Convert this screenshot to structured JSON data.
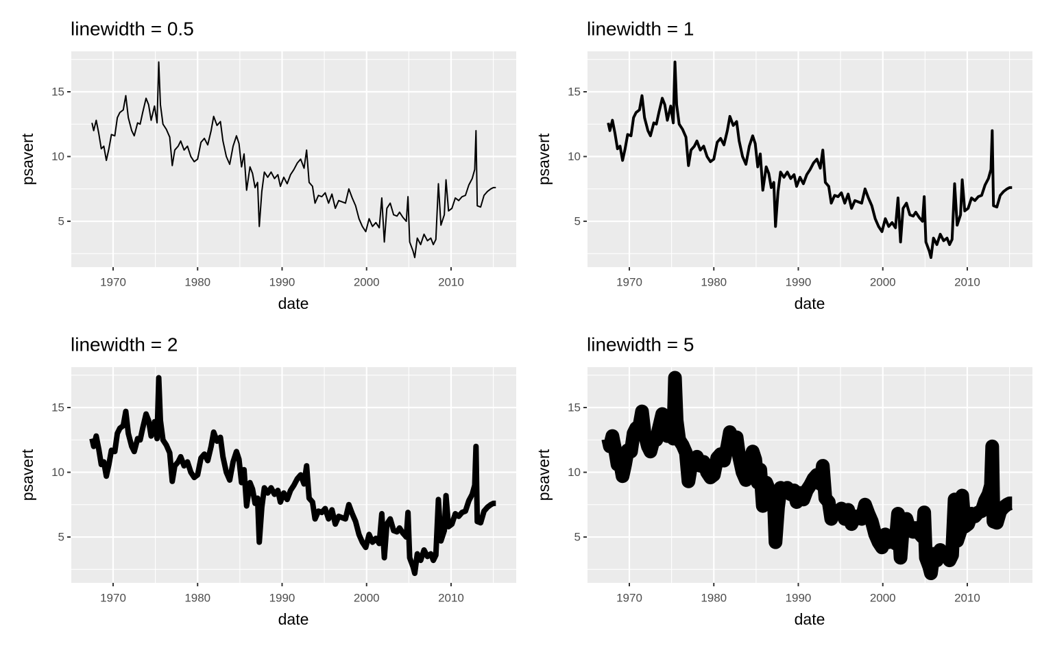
{
  "chart_data": [
    {
      "type": "line",
      "title": "linewidth = 0.5",
      "linewidth": 0.5,
      "color": "#000000",
      "x_label": "date",
      "y_label": "psavert",
      "xlim": [
        1964.97,
        2017.71
      ],
      "ylim": [
        1.46,
        18.12
      ],
      "xticks": [
        1970,
        1980,
        1990,
        2000,
        2010
      ],
      "yticks": [
        5,
        10,
        15
      ],
      "xminor": [
        1965,
        1975,
        1985,
        1995,
        2005,
        2015
      ],
      "yminor": [
        2.5,
        7.5,
        12.5,
        17.5
      ],
      "grid": true,
      "x": [
        1967.5,
        1967.7,
        1968.0,
        1968.3,
        1968.6,
        1968.9,
        1969.2,
        1969.5,
        1969.8,
        1970.2,
        1970.5,
        1970.8,
        1971.2,
        1971.5,
        1971.8,
        1972.2,
        1972.5,
        1972.9,
        1973.2,
        1973.5,
        1973.9,
        1974.2,
        1974.5,
        1974.9,
        1975.2,
        1975.4,
        1975.6,
        1975.9,
        1976.3,
        1976.7,
        1977.0,
        1977.3,
        1977.7,
        1978.0,
        1978.4,
        1978.8,
        1979.2,
        1979.6,
        1980.0,
        1980.4,
        1980.8,
        1981.2,
        1981.6,
        1981.9,
        1982.3,
        1982.7,
        1983.0,
        1983.4,
        1983.8,
        1984.2,
        1984.6,
        1984.9,
        1985.2,
        1985.5,
        1985.8,
        1986.2,
        1986.5,
        1986.8,
        1987.1,
        1987.3,
        1987.6,
        1987.9,
        1988.3,
        1988.7,
        1989.1,
        1989.5,
        1989.8,
        1990.2,
        1990.6,
        1991.0,
        1991.4,
        1991.8,
        1992.2,
        1992.6,
        1992.9,
        1993.2,
        1993.6,
        1993.9,
        1994.3,
        1994.7,
        1995.1,
        1995.5,
        1995.9,
        1996.3,
        1996.7,
        1997.1,
        1997.5,
        1997.9,
        1998.3,
        1998.7,
        1999.1,
        1999.5,
        1999.9,
        2000.3,
        2000.7,
        2001.1,
        2001.5,
        2001.8,
        2002.1,
        2002.4,
        2002.8,
        2003.2,
        2003.6,
        2003.9,
        2004.3,
        2004.7,
        2004.9,
        2005.1,
        2005.5,
        2005.7,
        2006.0,
        2006.4,
        2006.8,
        2007.2,
        2007.6,
        2007.9,
        2008.2,
        2008.5,
        2008.8,
        2009.2,
        2009.4,
        2009.7,
        2010.1,
        2010.5,
        2010.9,
        2011.3,
        2011.7,
        2012.1,
        2012.5,
        2012.8,
        2012.95,
        2013.1,
        2013.5,
        2013.9,
        2014.3,
        2014.7,
        2015.0,
        2015.3
      ],
      "values": [
        12.6,
        12.0,
        12.8,
        11.8,
        10.6,
        10.8,
        9.7,
        10.6,
        11.7,
        11.6,
        13.0,
        13.4,
        13.6,
        14.7,
        13.0,
        12.0,
        11.6,
        12.6,
        12.5,
        13.4,
        14.5,
        14.0,
        12.8,
        13.9,
        12.6,
        17.3,
        14.0,
        12.5,
        12.1,
        11.5,
        9.3,
        10.5,
        10.8,
        11.2,
        10.5,
        10.8,
        10.0,
        9.6,
        9.8,
        11.1,
        11.4,
        10.9,
        12.0,
        13.1,
        12.4,
        12.7,
        11.2,
        10.0,
        9.4,
        10.8,
        11.6,
        11.0,
        9.2,
        10.2,
        7.4,
        9.2,
        8.7,
        7.6,
        8.0,
        4.6,
        7.3,
        8.8,
        8.4,
        8.8,
        8.3,
        8.6,
        7.7,
        8.4,
        7.9,
        8.6,
        9.0,
        9.5,
        9.8,
        9.1,
        10.5,
        8.0,
        7.7,
        6.4,
        7.0,
        6.9,
        7.2,
        6.4,
        7.1,
        6.0,
        6.6,
        6.5,
        6.4,
        7.5,
        6.8,
        6.2,
        5.2,
        4.6,
        4.2,
        5.2,
        4.6,
        4.9,
        4.5,
        6.8,
        3.4,
        6.0,
        6.4,
        5.5,
        5.4,
        5.7,
        5.3,
        5.0,
        6.9,
        3.4,
        2.7,
        2.2,
        3.7,
        3.2,
        4.0,
        3.5,
        3.7,
        3.2,
        3.6,
        7.9,
        4.7,
        5.5,
        8.2,
        5.8,
        6.0,
        6.8,
        6.6,
        6.9,
        7.0,
        7.8,
        8.3,
        9.0,
        12.0,
        6.2,
        6.1,
        7.0,
        7.3,
        7.5,
        7.6,
        7.6
      ]
    },
    {
      "type": "line",
      "title": "linewidth = 1",
      "linewidth": 1,
      "color": "#000000",
      "x_label": "date",
      "y_label": "psavert",
      "xlim": [
        1964.97,
        2017.71
      ],
      "ylim": [
        1.46,
        18.12
      ],
      "xticks": [
        1970,
        1980,
        1990,
        2000,
        2010
      ],
      "yticks": [
        5,
        10,
        15
      ],
      "xminor": [
        1965,
        1975,
        1985,
        1995,
        2005,
        2015
      ],
      "yminor": [
        2.5,
        7.5,
        12.5,
        17.5
      ],
      "grid": true,
      "x": [
        1967.5,
        1967.7,
        1968.0,
        1968.3,
        1968.6,
        1968.9,
        1969.2,
        1969.5,
        1969.8,
        1970.2,
        1970.5,
        1970.8,
        1971.2,
        1971.5,
        1971.8,
        1972.2,
        1972.5,
        1972.9,
        1973.2,
        1973.5,
        1973.9,
        1974.2,
        1974.5,
        1974.9,
        1975.2,
        1975.4,
        1975.6,
        1975.9,
        1976.3,
        1976.7,
        1977.0,
        1977.3,
        1977.7,
        1978.0,
        1978.4,
        1978.8,
        1979.2,
        1979.6,
        1980.0,
        1980.4,
        1980.8,
        1981.2,
        1981.6,
        1981.9,
        1982.3,
        1982.7,
        1983.0,
        1983.4,
        1983.8,
        1984.2,
        1984.6,
        1984.9,
        1985.2,
        1985.5,
        1985.8,
        1986.2,
        1986.5,
        1986.8,
        1987.1,
        1987.3,
        1987.6,
        1987.9,
        1988.3,
        1988.7,
        1989.1,
        1989.5,
        1989.8,
        1990.2,
        1990.6,
        1991.0,
        1991.4,
        1991.8,
        1992.2,
        1992.6,
        1992.9,
        1993.2,
        1993.6,
        1993.9,
        1994.3,
        1994.7,
        1995.1,
        1995.5,
        1995.9,
        1996.3,
        1996.7,
        1997.1,
        1997.5,
        1997.9,
        1998.3,
        1998.7,
        1999.1,
        1999.5,
        1999.9,
        2000.3,
        2000.7,
        2001.1,
        2001.5,
        2001.8,
        2002.1,
        2002.4,
        2002.8,
        2003.2,
        2003.6,
        2003.9,
        2004.3,
        2004.7,
        2004.9,
        2005.1,
        2005.5,
        2005.7,
        2006.0,
        2006.4,
        2006.8,
        2007.2,
        2007.6,
        2007.9,
        2008.2,
        2008.5,
        2008.8,
        2009.2,
        2009.4,
        2009.7,
        2010.1,
        2010.5,
        2010.9,
        2011.3,
        2011.7,
        2012.1,
        2012.5,
        2012.8,
        2012.95,
        2013.1,
        2013.5,
        2013.9,
        2014.3,
        2014.7,
        2015.0,
        2015.3
      ],
      "values": [
        12.6,
        12.0,
        12.8,
        11.8,
        10.6,
        10.8,
        9.7,
        10.6,
        11.7,
        11.6,
        13.0,
        13.4,
        13.6,
        14.7,
        13.0,
        12.0,
        11.6,
        12.6,
        12.5,
        13.4,
        14.5,
        14.0,
        12.8,
        13.9,
        12.6,
        17.3,
        14.0,
        12.5,
        12.1,
        11.5,
        9.3,
        10.5,
        10.8,
        11.2,
        10.5,
        10.8,
        10.0,
        9.6,
        9.8,
        11.1,
        11.4,
        10.9,
        12.0,
        13.1,
        12.4,
        12.7,
        11.2,
        10.0,
        9.4,
        10.8,
        11.6,
        11.0,
        9.2,
        10.2,
        7.4,
        9.2,
        8.7,
        7.6,
        8.0,
        4.6,
        7.3,
        8.8,
        8.4,
        8.8,
        8.3,
        8.6,
        7.7,
        8.4,
        7.9,
        8.6,
        9.0,
        9.5,
        9.8,
        9.1,
        10.5,
        8.0,
        7.7,
        6.4,
        7.0,
        6.9,
        7.2,
        6.4,
        7.1,
        6.0,
        6.6,
        6.5,
        6.4,
        7.5,
        6.8,
        6.2,
        5.2,
        4.6,
        4.2,
        5.2,
        4.6,
        4.9,
        4.5,
        6.8,
        3.4,
        6.0,
        6.4,
        5.5,
        5.4,
        5.7,
        5.3,
        5.0,
        6.9,
        3.4,
        2.7,
        2.2,
        3.7,
        3.2,
        4.0,
        3.5,
        3.7,
        3.2,
        3.6,
        7.9,
        4.7,
        5.5,
        8.2,
        5.8,
        6.0,
        6.8,
        6.6,
        6.9,
        7.0,
        7.8,
        8.3,
        9.0,
        12.0,
        6.2,
        6.1,
        7.0,
        7.3,
        7.5,
        7.6,
        7.6
      ]
    },
    {
      "type": "line",
      "title": "linewidth = 2",
      "linewidth": 2,
      "color": "#000000",
      "x_label": "date",
      "y_label": "psavert",
      "xlim": [
        1964.97,
        2017.71
      ],
      "ylim": [
        1.46,
        18.12
      ],
      "xticks": [
        1970,
        1980,
        1990,
        2000,
        2010
      ],
      "yticks": [
        5,
        10,
        15
      ],
      "xminor": [
        1965,
        1975,
        1985,
        1995,
        2005,
        2015
      ],
      "yminor": [
        2.5,
        7.5,
        12.5,
        17.5
      ],
      "grid": true,
      "x": [
        1967.5,
        1967.7,
        1968.0,
        1968.3,
        1968.6,
        1968.9,
        1969.2,
        1969.5,
        1969.8,
        1970.2,
        1970.5,
        1970.8,
        1971.2,
        1971.5,
        1971.8,
        1972.2,
        1972.5,
        1972.9,
        1973.2,
        1973.5,
        1973.9,
        1974.2,
        1974.5,
        1974.9,
        1975.2,
        1975.4,
        1975.6,
        1975.9,
        1976.3,
        1976.7,
        1977.0,
        1977.3,
        1977.7,
        1978.0,
        1978.4,
        1978.8,
        1979.2,
        1979.6,
        1980.0,
        1980.4,
        1980.8,
        1981.2,
        1981.6,
        1981.9,
        1982.3,
        1982.7,
        1983.0,
        1983.4,
        1983.8,
        1984.2,
        1984.6,
        1984.9,
        1985.2,
        1985.5,
        1985.8,
        1986.2,
        1986.5,
        1986.8,
        1987.1,
        1987.3,
        1987.6,
        1987.9,
        1988.3,
        1988.7,
        1989.1,
        1989.5,
        1989.8,
        1990.2,
        1990.6,
        1991.0,
        1991.4,
        1991.8,
        1992.2,
        1992.6,
        1992.9,
        1993.2,
        1993.6,
        1993.9,
        1994.3,
        1994.7,
        1995.1,
        1995.5,
        1995.9,
        1996.3,
        1996.7,
        1997.1,
        1997.5,
        1997.9,
        1998.3,
        1998.7,
        1999.1,
        1999.5,
        1999.9,
        2000.3,
        2000.7,
        2001.1,
        2001.5,
        2001.8,
        2002.1,
        2002.4,
        2002.8,
        2003.2,
        2003.6,
        2003.9,
        2004.3,
        2004.7,
        2004.9,
        2005.1,
        2005.5,
        2005.7,
        2006.0,
        2006.4,
        2006.8,
        2007.2,
        2007.6,
        2007.9,
        2008.2,
        2008.5,
        2008.8,
        2009.2,
        2009.4,
        2009.7,
        2010.1,
        2010.5,
        2010.9,
        2011.3,
        2011.7,
        2012.1,
        2012.5,
        2012.8,
        2012.95,
        2013.1,
        2013.5,
        2013.9,
        2014.3,
        2014.7,
        2015.0,
        2015.3
      ],
      "values": [
        12.6,
        12.0,
        12.8,
        11.8,
        10.6,
        10.8,
        9.7,
        10.6,
        11.7,
        11.6,
        13.0,
        13.4,
        13.6,
        14.7,
        13.0,
        12.0,
        11.6,
        12.6,
        12.5,
        13.4,
        14.5,
        14.0,
        12.8,
        13.9,
        12.6,
        17.3,
        14.0,
        12.5,
        12.1,
        11.5,
        9.3,
        10.5,
        10.8,
        11.2,
        10.5,
        10.8,
        10.0,
        9.6,
        9.8,
        11.1,
        11.4,
        10.9,
        12.0,
        13.1,
        12.4,
        12.7,
        11.2,
        10.0,
        9.4,
        10.8,
        11.6,
        11.0,
        9.2,
        10.2,
        7.4,
        9.2,
        8.7,
        7.6,
        8.0,
        4.6,
        7.3,
        8.8,
        8.4,
        8.8,
        8.3,
        8.6,
        7.7,
        8.4,
        7.9,
        8.6,
        9.0,
        9.5,
        9.8,
        9.1,
        10.5,
        8.0,
        7.7,
        6.4,
        7.0,
        6.9,
        7.2,
        6.4,
        7.1,
        6.0,
        6.6,
        6.5,
        6.4,
        7.5,
        6.8,
        6.2,
        5.2,
        4.6,
        4.2,
        5.2,
        4.6,
        4.9,
        4.5,
        6.8,
        3.4,
        6.0,
        6.4,
        5.5,
        5.4,
        5.7,
        5.3,
        5.0,
        6.9,
        3.4,
        2.7,
        2.2,
        3.7,
        3.2,
        4.0,
        3.5,
        3.7,
        3.2,
        3.6,
        7.9,
        4.7,
        5.5,
        8.2,
        5.8,
        6.0,
        6.8,
        6.6,
        6.9,
        7.0,
        7.8,
        8.3,
        9.0,
        12.0,
        6.2,
        6.1,
        7.0,
        7.3,
        7.5,
        7.6,
        7.6
      ]
    },
    {
      "type": "line",
      "title": "linewidth = 5",
      "linewidth": 5,
      "color": "#000000",
      "x_label": "date",
      "y_label": "psavert",
      "xlim": [
        1964.97,
        2017.71
      ],
      "ylim": [
        1.46,
        18.12
      ],
      "xticks": [
        1970,
        1980,
        1990,
        2000,
        2010
      ],
      "yticks": [
        5,
        10,
        15
      ],
      "xminor": [
        1965,
        1975,
        1985,
        1995,
        2005,
        2015
      ],
      "yminor": [
        2.5,
        7.5,
        12.5,
        17.5
      ],
      "grid": true,
      "x": [
        1967.5,
        1967.7,
        1968.0,
        1968.3,
        1968.6,
        1968.9,
        1969.2,
        1969.5,
        1969.8,
        1970.2,
        1970.5,
        1970.8,
        1971.2,
        1971.5,
        1971.8,
        1972.2,
        1972.5,
        1972.9,
        1973.2,
        1973.5,
        1973.9,
        1974.2,
        1974.5,
        1974.9,
        1975.2,
        1975.4,
        1975.6,
        1975.9,
        1976.3,
        1976.7,
        1977.0,
        1977.3,
        1977.7,
        1978.0,
        1978.4,
        1978.8,
        1979.2,
        1979.6,
        1980.0,
        1980.4,
        1980.8,
        1981.2,
        1981.6,
        1981.9,
        1982.3,
        1982.7,
        1983.0,
        1983.4,
        1983.8,
        1984.2,
        1984.6,
        1984.9,
        1985.2,
        1985.5,
        1985.8,
        1986.2,
        1986.5,
        1986.8,
        1987.1,
        1987.3,
        1987.6,
        1987.9,
        1988.3,
        1988.7,
        1989.1,
        1989.5,
        1989.8,
        1990.2,
        1990.6,
        1991.0,
        1991.4,
        1991.8,
        1992.2,
        1992.6,
        1992.9,
        1993.2,
        1993.6,
        1993.9,
        1994.3,
        1994.7,
        1995.1,
        1995.5,
        1995.9,
        1996.3,
        1996.7,
        1997.1,
        1997.5,
        1997.9,
        1998.3,
        1998.7,
        1999.1,
        1999.5,
        1999.9,
        2000.3,
        2000.7,
        2001.1,
        2001.5,
        2001.8,
        2002.1,
        2002.4,
        2002.8,
        2003.2,
        2003.6,
        2003.9,
        2004.3,
        2004.7,
        2004.9,
        2005.1,
        2005.5,
        2005.7,
        2006.0,
        2006.4,
        2006.8,
        2007.2,
        2007.6,
        2007.9,
        2008.2,
        2008.5,
        2008.8,
        2009.2,
        2009.4,
        2009.7,
        2010.1,
        2010.5,
        2010.9,
        2011.3,
        2011.7,
        2012.1,
        2012.5,
        2012.8,
        2012.95,
        2013.1,
        2013.5,
        2013.9,
        2014.3,
        2014.7,
        2015.0,
        2015.3
      ],
      "values": [
        12.6,
        12.0,
        12.8,
        11.8,
        10.6,
        10.8,
        9.7,
        10.6,
        11.7,
        11.6,
        13.0,
        13.4,
        13.6,
        14.7,
        13.0,
        12.0,
        11.6,
        12.6,
        12.5,
        13.4,
        14.5,
        14.0,
        12.8,
        13.9,
        12.6,
        17.3,
        14.0,
        12.5,
        12.1,
        11.5,
        9.3,
        10.5,
        10.8,
        11.2,
        10.5,
        10.8,
        10.0,
        9.6,
        9.8,
        11.1,
        11.4,
        10.9,
        12.0,
        13.1,
        12.4,
        12.7,
        11.2,
        10.0,
        9.4,
        10.8,
        11.6,
        11.0,
        9.2,
        10.2,
        7.4,
        9.2,
        8.7,
        7.6,
        8.0,
        4.6,
        7.3,
        8.8,
        8.4,
        8.8,
        8.3,
        8.6,
        7.7,
        8.4,
        7.9,
        8.6,
        9.0,
        9.5,
        9.8,
        9.1,
        10.5,
        8.0,
        7.7,
        6.4,
        7.0,
        6.9,
        7.2,
        6.4,
        7.1,
        6.0,
        6.6,
        6.5,
        6.4,
        7.5,
        6.8,
        6.2,
        5.2,
        4.6,
        4.2,
        5.2,
        4.6,
        4.9,
        4.5,
        6.8,
        3.4,
        6.0,
        6.4,
        5.5,
        5.4,
        5.7,
        5.3,
        5.0,
        6.9,
        3.4,
        2.7,
        2.2,
        3.7,
        3.2,
        4.0,
        3.5,
        3.7,
        3.2,
        3.6,
        7.9,
        4.7,
        5.5,
        8.2,
        5.8,
        6.0,
        6.8,
        6.6,
        6.9,
        7.0,
        7.8,
        8.3,
        9.0,
        12.0,
        6.2,
        6.1,
        7.0,
        7.3,
        7.5,
        7.6,
        7.6
      ]
    }
  ]
}
